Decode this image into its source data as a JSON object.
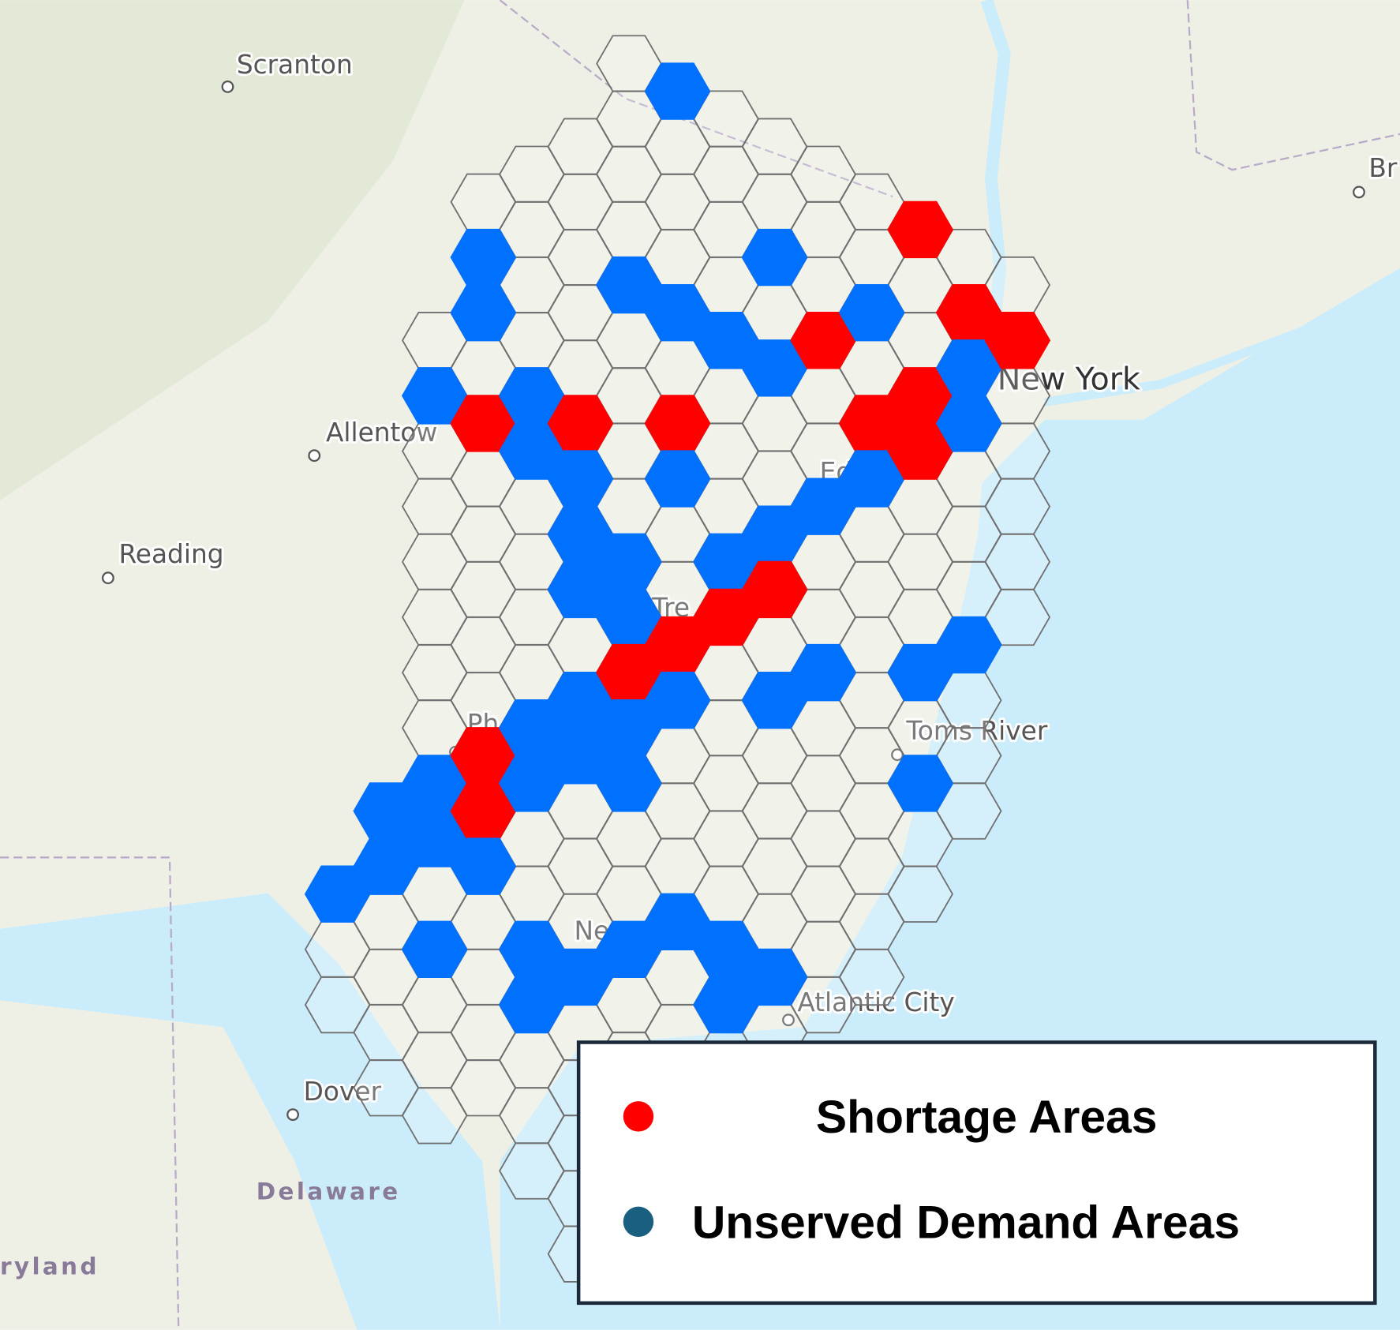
{
  "map": {
    "places": [
      "Scranton",
      "Allentow",
      "Reading",
      "New York",
      "Tre",
      "Toms River",
      "Atlantic City",
      "Dover",
      "Delaware",
      "ryland",
      "Br",
      "Ph",
      "Ed",
      "Ne"
    ]
  },
  "legend": {
    "items": [
      {
        "label": "Shortage Areas",
        "color": "#ff0000"
      },
      {
        "label": "Unserved Demand Areas",
        "color": "#1a5e80"
      }
    ]
  }
}
